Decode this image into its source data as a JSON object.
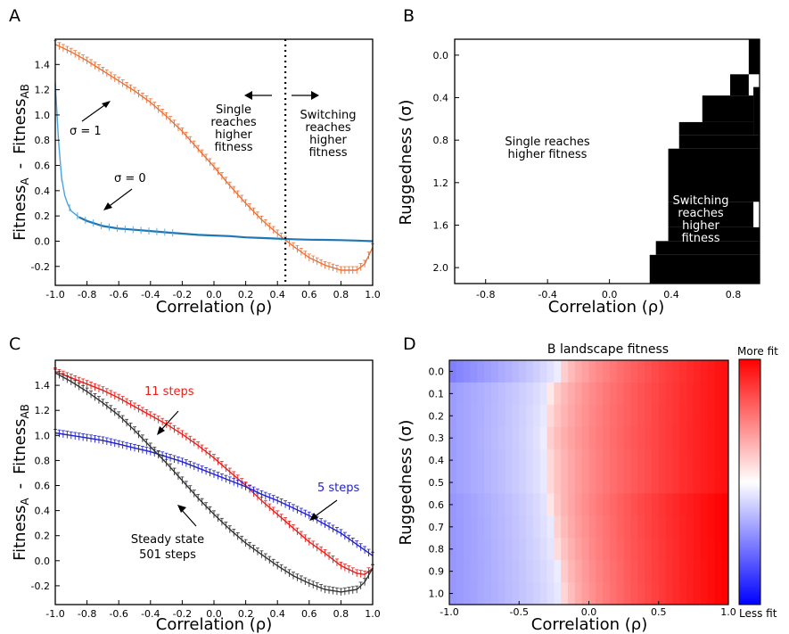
{
  "panels": {
    "A": {
      "letter": "A",
      "xlabel": "Correlation (ρ)",
      "ylabel": {
        "f_a": "Fitness",
        "sub_a": "A",
        "minus": "-",
        "f_ab": "Fitness",
        "sub_ab": "AB"
      },
      "annotations": {
        "sigma1": "σ = 1",
        "sigma0": "σ = 0",
        "single": [
          "Single",
          "reaches",
          "higher",
          "fitness"
        ],
        "switching": [
          "Switching",
          "reaches",
          "higher",
          "fitness"
        ]
      }
    },
    "B": {
      "letter": "B",
      "xlabel": "Correlation (ρ)",
      "ylabel": "Ruggedness (σ)",
      "single_label": [
        "Single reaches",
        "higher fitness"
      ],
      "switching_label": [
        "Switching",
        "reaches",
        "higher",
        "fitness"
      ]
    },
    "C": {
      "letter": "C",
      "xlabel": "Correlation (ρ)",
      "ylabel": {
        "f_a": "Fitness",
        "sub_a": "A",
        "minus": "-",
        "f_ab": "Fitness",
        "sub_ab": "AB"
      },
      "annotations": {
        "steps11": "11 steps",
        "steps5": "5 steps",
        "steady": [
          "Steady state",
          "501 steps"
        ]
      }
    },
    "D": {
      "letter": "D",
      "title": "B landscape fitness",
      "xlabel": "Correlation (ρ)",
      "ylabel": "Ruggedness (σ)",
      "colorbar_top": "More fit",
      "colorbar_bottom": "Less fit"
    }
  },
  "colors": {
    "orange": "#e8743b",
    "light_blue": "#4aa3df",
    "blue_line": "#1f77b4",
    "red": "#e8201c",
    "navy": "#2222cc",
    "dark_gray": "#333333"
  },
  "chart_data": [
    {
      "id": "A",
      "type": "line",
      "xlim": [
        -1.0,
        1.0
      ],
      "ylim": [
        -0.35,
        1.6
      ],
      "xticks": [
        -1.0,
        -0.8,
        -0.6,
        -0.4,
        -0.2,
        0.0,
        0.2,
        0.4,
        0.6,
        0.8,
        1.0
      ],
      "yticks": [
        -0.2,
        0.0,
        0.2,
        0.4,
        0.6,
        0.8,
        1.0,
        1.2,
        1.4
      ],
      "vline_x": 0.45,
      "series": [
        {
          "name": "σ = 1",
          "color": "#e8743b",
          "x": [
            -1.0,
            -0.9,
            -0.8,
            -0.7,
            -0.6,
            -0.5,
            -0.4,
            -0.3,
            -0.2,
            -0.1,
            0.0,
            0.1,
            0.2,
            0.3,
            0.4,
            0.5,
            0.6,
            0.7,
            0.8,
            0.9,
            0.95,
            1.0
          ],
          "y": [
            1.56,
            1.5,
            1.43,
            1.35,
            1.27,
            1.19,
            1.1,
            0.99,
            0.87,
            0.73,
            0.59,
            0.44,
            0.3,
            0.17,
            0.06,
            -0.04,
            -0.13,
            -0.19,
            -0.23,
            -0.23,
            -0.18,
            -0.05
          ]
        },
        {
          "name": "σ = 0",
          "color": "#4aa3df",
          "x": [
            -1.0,
            -0.98,
            -0.96,
            -0.94,
            -0.92,
            -0.9,
            -0.85,
            -0.8,
            -0.7,
            -0.6,
            -0.5,
            -0.4,
            -0.3,
            -0.2,
            -0.1,
            0.0,
            0.1,
            0.2,
            0.3,
            0.4,
            0.5,
            0.6,
            0.7,
            0.8,
            0.9,
            1.0
          ],
          "y": [
            1.25,
            0.8,
            0.5,
            0.36,
            0.29,
            0.24,
            0.19,
            0.16,
            0.12,
            0.1,
            0.09,
            0.08,
            0.07,
            0.06,
            0.05,
            0.045,
            0.04,
            0.03,
            0.025,
            0.02,
            0.015,
            0.012,
            0.01,
            0.008,
            0.005,
            0.0
          ]
        }
      ]
    },
    {
      "id": "B",
      "type": "heatmap",
      "xlim": [
        -1.0,
        0.97
      ],
      "ylim": [
        2.15,
        -0.15
      ],
      "xticks": [
        -0.8,
        -0.4,
        0.0,
        0.4,
        0.8
      ],
      "yticks": [
        0.0,
        0.4,
        0.8,
        1.2,
        1.6,
        2.0
      ],
      "regions": [
        {
          "x0": 0.9,
          "x1": 0.97,
          "y0": -0.15,
          "y1": 0.18
        },
        {
          "x0": 0.78,
          "x1": 0.9,
          "y0": 0.18,
          "y1": 0.38
        },
        {
          "x0": 0.93,
          "x1": 0.97,
          "y0": 0.3,
          "y1": 0.75
        },
        {
          "x0": 0.6,
          "x1": 0.93,
          "y0": 0.38,
          "y1": 0.63
        },
        {
          "x0": 0.45,
          "x1": 0.93,
          "y0": 0.63,
          "y1": 0.75
        },
        {
          "x0": 0.45,
          "x1": 0.97,
          "y0": 0.75,
          "y1": 0.88
        },
        {
          "x0": 0.38,
          "x1": 0.97,
          "y0": 0.88,
          "y1": 1.38
        },
        {
          "x0": 0.38,
          "x1": 0.93,
          "y0": 1.38,
          "y1": 1.62
        },
        {
          "x0": 0.38,
          "x1": 0.97,
          "y0": 1.62,
          "y1": 1.75
        },
        {
          "x0": 0.3,
          "x1": 0.97,
          "y0": 1.75,
          "y1": 1.88
        },
        {
          "x0": 0.26,
          "x1": 0.97,
          "y0": 1.88,
          "y1": 2.15
        }
      ]
    },
    {
      "id": "C",
      "type": "line",
      "xlim": [
        -1.0,
        1.0
      ],
      "ylim": [
        -0.35,
        1.6
      ],
      "xticks": [
        -1.0,
        -0.8,
        -0.6,
        -0.4,
        -0.2,
        0.0,
        0.2,
        0.4,
        0.6,
        0.8,
        1.0
      ],
      "yticks": [
        -0.2,
        0.0,
        0.2,
        0.4,
        0.6,
        0.8,
        1.0,
        1.2,
        1.4
      ],
      "series": [
        {
          "name": "11 steps",
          "color": "#e8201c",
          "x": [
            -1.0,
            -0.9,
            -0.8,
            -0.7,
            -0.6,
            -0.5,
            -0.4,
            -0.3,
            -0.2,
            -0.1,
            0.0,
            0.1,
            0.2,
            0.3,
            0.4,
            0.5,
            0.6,
            0.7,
            0.8,
            0.9,
            0.95,
            1.0
          ],
          "y": [
            1.51,
            1.46,
            1.41,
            1.36,
            1.3,
            1.23,
            1.16,
            1.09,
            1.01,
            0.92,
            0.82,
            0.71,
            0.6,
            0.48,
            0.37,
            0.26,
            0.15,
            0.06,
            -0.04,
            -0.1,
            -0.11,
            -0.06
          ]
        },
        {
          "name": "5 steps",
          "color": "#2222cc",
          "x": [
            -1.0,
            -0.9,
            -0.8,
            -0.7,
            -0.6,
            -0.5,
            -0.4,
            -0.3,
            -0.2,
            -0.1,
            0.0,
            0.1,
            0.2,
            0.3,
            0.4,
            0.5,
            0.6,
            0.7,
            0.8,
            0.9,
            1.0
          ],
          "y": [
            1.02,
            1.0,
            0.98,
            0.96,
            0.93,
            0.9,
            0.87,
            0.83,
            0.79,
            0.74,
            0.69,
            0.64,
            0.59,
            0.53,
            0.48,
            0.42,
            0.36,
            0.29,
            0.22,
            0.13,
            0.04
          ]
        },
        {
          "name": "Steady state 501 steps",
          "color": "#333333",
          "x": [
            -1.0,
            -0.9,
            -0.8,
            -0.7,
            -0.6,
            -0.5,
            -0.4,
            -0.3,
            -0.2,
            -0.1,
            0.0,
            0.1,
            0.2,
            0.3,
            0.4,
            0.5,
            0.6,
            0.7,
            0.8,
            0.9,
            0.95,
            1.0
          ],
          "y": [
            1.5,
            1.43,
            1.35,
            1.26,
            1.16,
            1.04,
            0.91,
            0.78,
            0.64,
            0.5,
            0.37,
            0.25,
            0.14,
            0.05,
            -0.04,
            -0.12,
            -0.18,
            -0.23,
            -0.25,
            -0.23,
            -0.17,
            -0.06
          ]
        }
      ]
    },
    {
      "id": "D",
      "type": "heatmap",
      "title": "B landscape fitness",
      "xlim": [
        -1.0,
        1.0
      ],
      "ylim": [
        1.05,
        -0.05
      ],
      "xticks": [
        -1.0,
        -0.5,
        0.0,
        0.5,
        1.0
      ],
      "yticks": [
        0.0,
        0.1,
        0.2,
        0.3,
        0.4,
        0.5,
        0.6,
        0.7,
        0.8,
        0.9,
        1.0
      ],
      "neutral_x": [
        -0.22,
        -0.28,
        -0.3,
        -0.32,
        -0.3,
        -0.3,
        -0.28,
        -0.26,
        -0.24,
        -0.22,
        -0.2
      ],
      "colorbar": {
        "top": "More fit",
        "bottom": "Less fit"
      }
    }
  ]
}
